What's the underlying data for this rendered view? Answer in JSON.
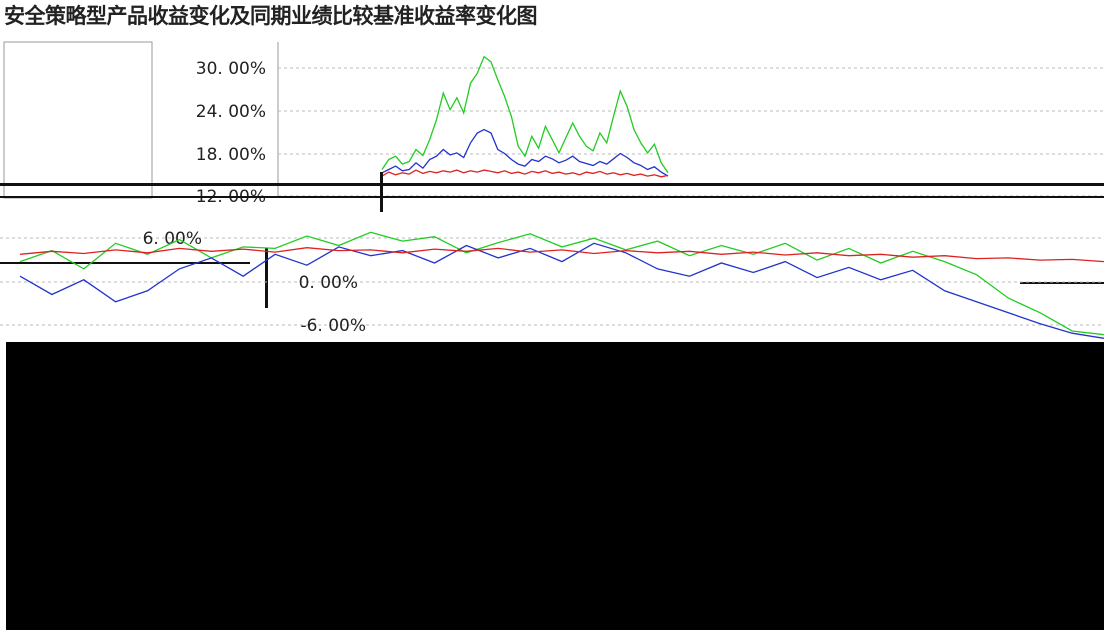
{
  "chart_title": "安全策略型产品收益变化及同期业绩比较基准收益率变化图",
  "chart_data": {
    "type": "line",
    "title": "安全策略型产品收益变化及同期业绩比较基准收益率变化图",
    "xlabel": "",
    "ylabel": "",
    "grid": true,
    "panels": [
      {
        "yticks": [
          "30. 00%",
          "24. 00%",
          "18. 00%",
          "12. 00%"
        ],
        "ylim": [
          10,
          32
        ],
        "series": [
          {
            "color": "#22cc22",
            "values": [
              14,
              15.5,
              16,
              14.8,
              15.2,
              17,
              16.1,
              18.5,
              21.5,
              25.5,
              23,
              24.8,
              22.5,
              27,
              28.5,
              31,
              30.2,
              27.5,
              25,
              22,
              17.5,
              16,
              19,
              17.2,
              20.5,
              18.5,
              16.5,
              18.8,
              21,
              19,
              17.5,
              16.8,
              19.5,
              18,
              22,
              25.8,
              23.5,
              20,
              18,
              16.5,
              17.8,
              15,
              13.5
            ]
          },
          {
            "color": "#2233cc",
            "values": [
              13.5,
              14,
              14.5,
              13.8,
              14,
              15,
              14.2,
              15.5,
              16,
              17,
              16.2,
              16.5,
              15.8,
              18,
              19.5,
              20,
              19.5,
              17,
              16.4,
              15.5,
              14.8,
              14.5,
              15.5,
              15.2,
              16,
              15.6,
              15,
              15.4,
              16,
              15.2,
              14.9,
              14.6,
              15.2,
              14.8,
              15.6,
              16.4,
              15.8,
              15,
              14.6,
              14,
              14.4,
              13.6,
              13
            ]
          },
          {
            "color": "#dd2222",
            "values": [
              13,
              13.6,
              13.2,
              13.5,
              13.3,
              13.9,
              13.4,
              13.7,
              13.5,
              13.8,
              13.6,
              13.9,
              13.5,
              13.8,
              13.6,
              13.9,
              13.7,
              13.5,
              13.8,
              13.4,
              13.6,
              13.3,
              13.7,
              13.5,
              13.8,
              13.4,
              13.6,
              13.3,
              13.5,
              13.2,
              13.6,
              13.4,
              13.7,
              13.3,
              13.5,
              13.2,
              13.4,
              13.1,
              13.3,
              13,
              13.2,
              12.9,
              13.1
            ]
          }
        ]
      },
      {
        "yticks": [
          "6. 00%",
          "0. 00%",
          "-6. 00%"
        ],
        "ylim": [
          -8,
          8
        ],
        "series": [
          {
            "color": "#22cc22",
            "values": [
              3,
              4.5,
              2,
              5.5,
              4,
              6,
              3.5,
              5,
              4.8,
              6.5,
              5.2,
              7,
              5.8,
              6.4,
              4.2,
              5.6,
              6.8,
              5,
              6.2,
              4.6,
              5.8,
              3.8,
              5.2,
              4,
              5.5,
              3.2,
              4.8,
              2.8,
              4.4,
              3,
              1.2,
              -2,
              -4,
              -6.5,
              -7
            ]
          },
          {
            "color": "#2233cc",
            "values": [
              1,
              -1.5,
              0.5,
              -2.5,
              -1,
              2,
              3.5,
              1,
              4,
              2.5,
              5,
              3.8,
              4.5,
              2.8,
              5.2,
              3.5,
              4.8,
              3,
              5.5,
              4.2,
              2,
              1,
              2.8,
              1.5,
              3,
              0.8,
              2.2,
              0.5,
              1.8,
              -1,
              -2.5,
              -4,
              -5.5,
              -6.8,
              -7.5
            ]
          },
          {
            "color": "#dd2222",
            "values": [
              4,
              4.4,
              4.1,
              4.6,
              4.2,
              4.8,
              4.4,
              4.7,
              4.3,
              4.9,
              4.5,
              4.6,
              4.2,
              4.7,
              4.4,
              4.8,
              4.3,
              4.6,
              4.1,
              4.5,
              4.2,
              4.4,
              4,
              4.3,
              3.9,
              4.2,
              3.8,
              4,
              3.6,
              3.8,
              3.4,
              3.5,
              3.2,
              3.3,
              3
            ]
          }
        ]
      }
    ]
  },
  "colors": {
    "grid": "#bbbbbb",
    "axis": "#666666",
    "band": "#000000"
  }
}
